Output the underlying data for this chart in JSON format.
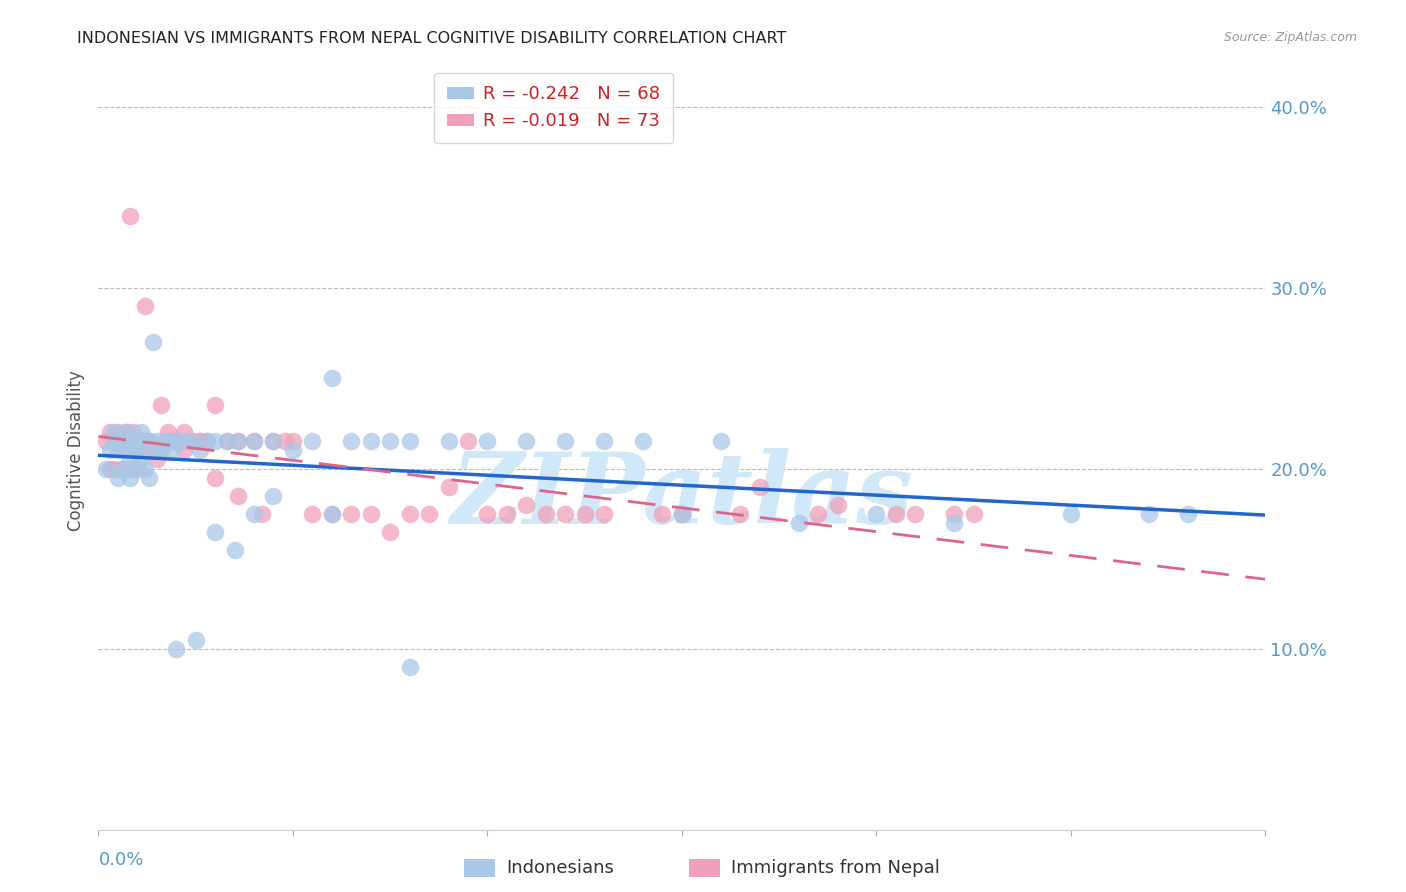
{
  "title": "INDONESIAN VS IMMIGRANTS FROM NEPAL COGNITIVE DISABILITY CORRELATION CHART",
  "source": "Source: ZipAtlas.com",
  "ylabel": "Cognitive Disability",
  "watermark": "ZIPatlas",
  "xlim": [
    0.0,
    0.3
  ],
  "ylim": [
    0.0,
    0.42
  ],
  "legend_entries": [
    {
      "label": "R = -0.242   N = 68",
      "color": "#a8c8e8"
    },
    {
      "label": "R = -0.019   N = 73",
      "color": "#f0a0b8"
    }
  ],
  "indonesian_color": "#a8c8e8",
  "nepal_color": "#f0a0b8",
  "indonesian_line_color": "#2266cc",
  "nepal_line_color": "#dd6688",
  "background_color": "#ffffff",
  "title_color": "#222222",
  "axis_label_color": "#555555",
  "tick_color": "#5599cc",
  "grid_color": "#bbbbbb",
  "title_fontsize": 11.5,
  "source_fontsize": 9,
  "watermark_color": "#d0e8f8",
  "indonesian_x": [
    0.002,
    0.003,
    0.004,
    0.004,
    0.005,
    0.005,
    0.006,
    0.006,
    0.007,
    0.007,
    0.008,
    0.008,
    0.009,
    0.009,
    0.01,
    0.01,
    0.011,
    0.011,
    0.012,
    0.012,
    0.013,
    0.013,
    0.014,
    0.015,
    0.015,
    0.016,
    0.017,
    0.018,
    0.019,
    0.02,
    0.022,
    0.024,
    0.026,
    0.028,
    0.03,
    0.033,
    0.036,
    0.04,
    0.045,
    0.05,
    0.055,
    0.06,
    0.065,
    0.07,
    0.075,
    0.08,
    0.09,
    0.1,
    0.11,
    0.12,
    0.13,
    0.14,
    0.15,
    0.16,
    0.18,
    0.2,
    0.22,
    0.25,
    0.27,
    0.28,
    0.02,
    0.025,
    0.03,
    0.035,
    0.04,
    0.045,
    0.06,
    0.08
  ],
  "indonesian_y": [
    0.2,
    0.21,
    0.215,
    0.22,
    0.195,
    0.21,
    0.2,
    0.215,
    0.21,
    0.22,
    0.205,
    0.195,
    0.215,
    0.2,
    0.21,
    0.215,
    0.22,
    0.205,
    0.215,
    0.2,
    0.195,
    0.215,
    0.27,
    0.215,
    0.21,
    0.21,
    0.215,
    0.215,
    0.21,
    0.215,
    0.215,
    0.215,
    0.21,
    0.215,
    0.215,
    0.215,
    0.215,
    0.215,
    0.215,
    0.21,
    0.215,
    0.25,
    0.215,
    0.215,
    0.215,
    0.215,
    0.215,
    0.215,
    0.215,
    0.215,
    0.215,
    0.215,
    0.175,
    0.215,
    0.17,
    0.175,
    0.17,
    0.175,
    0.175,
    0.175,
    0.1,
    0.105,
    0.165,
    0.155,
    0.175,
    0.185,
    0.175,
    0.09
  ],
  "nepal_x": [
    0.002,
    0.003,
    0.003,
    0.004,
    0.004,
    0.005,
    0.005,
    0.006,
    0.006,
    0.007,
    0.007,
    0.008,
    0.008,
    0.009,
    0.009,
    0.01,
    0.01,
    0.011,
    0.011,
    0.012,
    0.013,
    0.014,
    0.015,
    0.016,
    0.017,
    0.018,
    0.019,
    0.02,
    0.022,
    0.024,
    0.026,
    0.028,
    0.03,
    0.033,
    0.036,
    0.04,
    0.045,
    0.05,
    0.06,
    0.07,
    0.08,
    0.09,
    0.1,
    0.11,
    0.12,
    0.13,
    0.15,
    0.17,
    0.19,
    0.21,
    0.22,
    0.008,
    0.012,
    0.016,
    0.022,
    0.026,
    0.03,
    0.036,
    0.042,
    0.048,
    0.055,
    0.065,
    0.075,
    0.085,
    0.095,
    0.105,
    0.115,
    0.125,
    0.145,
    0.165,
    0.185,
    0.205,
    0.225
  ],
  "nepal_y": [
    0.215,
    0.2,
    0.22,
    0.215,
    0.2,
    0.22,
    0.215,
    0.2,
    0.215,
    0.21,
    0.22,
    0.215,
    0.2,
    0.215,
    0.22,
    0.2,
    0.21,
    0.215,
    0.215,
    0.21,
    0.215,
    0.21,
    0.205,
    0.21,
    0.215,
    0.22,
    0.215,
    0.215,
    0.21,
    0.215,
    0.215,
    0.215,
    0.235,
    0.215,
    0.215,
    0.215,
    0.215,
    0.215,
    0.175,
    0.175,
    0.175,
    0.19,
    0.175,
    0.18,
    0.175,
    0.175,
    0.175,
    0.19,
    0.18,
    0.175,
    0.175,
    0.34,
    0.29,
    0.235,
    0.22,
    0.215,
    0.195,
    0.185,
    0.175,
    0.215,
    0.175,
    0.175,
    0.165,
    0.175,
    0.215,
    0.175,
    0.175,
    0.175,
    0.175,
    0.175,
    0.175,
    0.175,
    0.175
  ]
}
